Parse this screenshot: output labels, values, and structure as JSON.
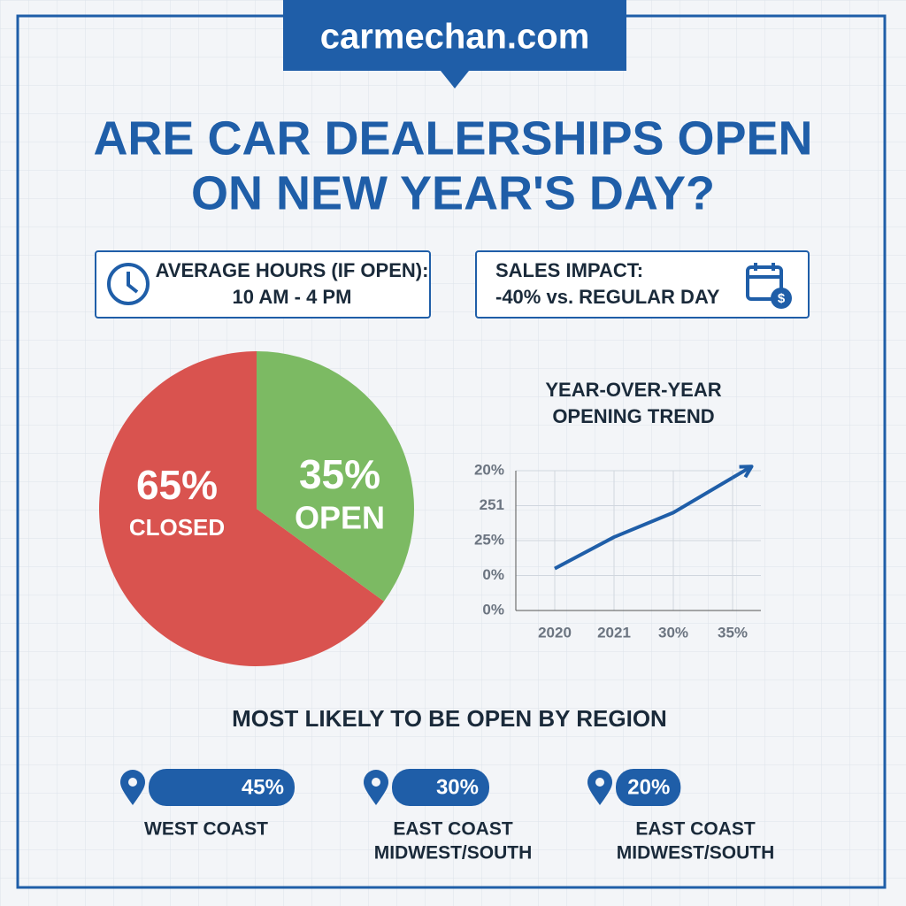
{
  "site": "carmechan.com",
  "title": [
    "ARE CAR DEALERSHIPS OPEN",
    "ON NEW YEAR'S DAY?"
  ],
  "info_boxes": [
    {
      "label": "AVERAGE HOURS (IF OPEN):",
      "value": "10 AM - 4 PM"
    },
    {
      "label": "SALES IMPACT:",
      "value": "-40% vs. REGULAR DAY"
    }
  ],
  "chart_data": [
    {
      "type": "pie",
      "categories": [
        "CLOSED",
        "OPEN"
      ],
      "values": [
        65,
        35
      ],
      "value_labels": [
        "65%",
        "35%"
      ],
      "colors": [
        "#d9534f",
        "#7cba63"
      ]
    },
    {
      "type": "line",
      "title": [
        "YEAR-OVER-YEAR",
        "OPENING TREND"
      ],
      "categories": [
        "2020",
        "2021",
        "30%",
        "35%"
      ],
      "y_categories": [
        "0%",
        "0%",
        "25%",
        "251",
        "20%"
      ],
      "ylim": [
        0,
        4
      ],
      "values": [
        1.2,
        2.1,
        2.8,
        3.8
      ],
      "color": "#1f5ea8",
      "grid": true
    },
    {
      "type": "bar",
      "title": "MOST LIKELY TO BE OPEN BY REGION",
      "categories": [
        [
          "WEST COAST"
        ],
        [
          "EAST COAST",
          "MIDWEST/SOUTH"
        ],
        [
          "EAST COAST",
          "MIDWEST/SOUTH"
        ]
      ],
      "values": [
        45,
        30,
        20
      ],
      "value_labels": [
        "45%",
        "30%",
        "20%"
      ],
      "xlim": [
        0,
        45
      ],
      "color": "#1f5ea8"
    }
  ]
}
